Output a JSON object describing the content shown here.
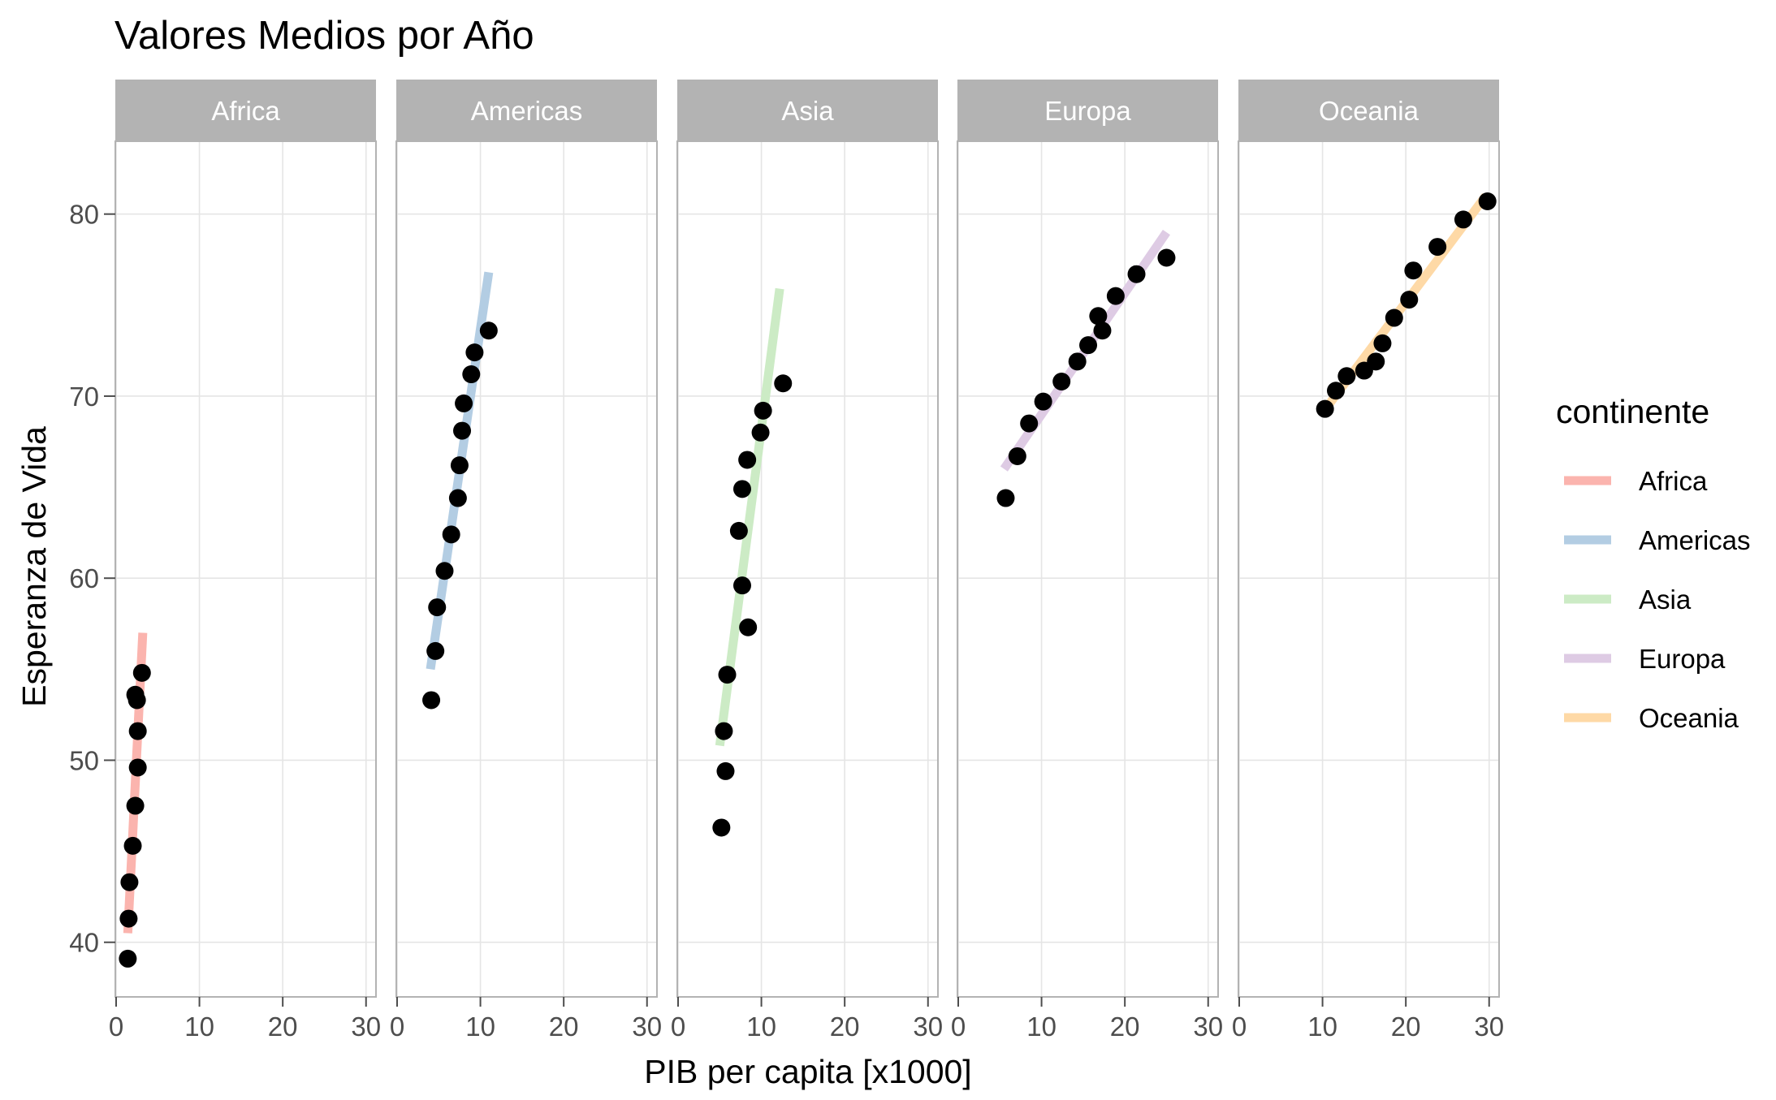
{
  "chart_data": {
    "type": "scatter",
    "title": "Valores Medios por Año",
    "xlabel": "PIB per capita [x1000]",
    "ylabel": "Esperanza de Vida",
    "xlim": [
      0,
      30
    ],
    "ylim": [
      37,
      84
    ],
    "x_ticks": [
      0,
      10,
      20,
      30
    ],
    "x_tick_labels": [
      "0",
      "10",
      "20",
      "30"
    ],
    "y_ticks": [
      40,
      50,
      60,
      70,
      80
    ],
    "y_tick_labels": [
      "40",
      "50",
      "60",
      "70",
      "80"
    ],
    "grid": true,
    "legend_title": "continente",
    "legend_position": "right",
    "legend_entries": [
      "Africa",
      "Americas",
      "Asia",
      "Europa",
      "Oceania"
    ],
    "point_color": "#000000",
    "strip_color": "#b3b3b3",
    "panels": [
      {
        "name": "Africa",
        "color": "#fbb4ae",
        "points": [
          [
            1.4,
            39.1
          ],
          [
            1.5,
            41.3
          ],
          [
            1.6,
            43.3
          ],
          [
            2.0,
            45.3
          ],
          [
            2.3,
            47.5
          ],
          [
            2.6,
            49.6
          ],
          [
            2.6,
            51.6
          ],
          [
            2.5,
            53.3
          ],
          [
            2.3,
            53.6
          ],
          [
            3.1,
            54.8
          ]
        ],
        "trend": [
          [
            1.4,
            40.5
          ],
          [
            3.2,
            57.0
          ]
        ]
      },
      {
        "name": "Americas",
        "color": "#b3cde3",
        "points": [
          [
            4.1,
            53.3
          ],
          [
            4.6,
            56.0
          ],
          [
            4.8,
            58.4
          ],
          [
            5.7,
            60.4
          ],
          [
            6.5,
            62.4
          ],
          [
            7.3,
            64.4
          ],
          [
            7.5,
            66.2
          ],
          [
            7.8,
            68.1
          ],
          [
            8.0,
            69.6
          ],
          [
            8.9,
            71.2
          ],
          [
            9.3,
            72.4
          ],
          [
            11.0,
            73.6
          ]
        ],
        "trend": [
          [
            4.0,
            55.0
          ],
          [
            11.0,
            76.8
          ]
        ]
      },
      {
        "name": "Asia",
        "color": "#ccebc5",
        "points": [
          [
            5.2,
            46.3
          ],
          [
            5.7,
            49.4
          ],
          [
            5.5,
            51.6
          ],
          [
            5.9,
            54.7
          ],
          [
            8.4,
            57.3
          ],
          [
            7.7,
            59.6
          ],
          [
            7.3,
            62.6
          ],
          [
            7.7,
            64.9
          ],
          [
            8.3,
            66.5
          ],
          [
            9.9,
            68.0
          ],
          [
            10.2,
            69.2
          ],
          [
            12.6,
            70.7
          ]
        ],
        "trend": [
          [
            5.0,
            50.8
          ],
          [
            12.2,
            75.9
          ]
        ]
      },
      {
        "name": "Europa",
        "color": "#decbe4",
        "points": [
          [
            5.7,
            64.4
          ],
          [
            7.1,
            66.7
          ],
          [
            8.5,
            68.5
          ],
          [
            10.2,
            69.7
          ],
          [
            12.4,
            70.8
          ],
          [
            14.3,
            71.9
          ],
          [
            15.6,
            72.8
          ],
          [
            17.3,
            73.6
          ],
          [
            16.8,
            74.4
          ],
          [
            18.9,
            75.5
          ],
          [
            21.4,
            76.7
          ],
          [
            25.0,
            77.6
          ]
        ],
        "trend": [
          [
            5.5,
            66.0
          ],
          [
            25.0,
            79.0
          ]
        ]
      },
      {
        "name": "Oceania",
        "color": "#fed9a6",
        "points": [
          [
            10.3,
            69.3
          ],
          [
            11.6,
            70.3
          ],
          [
            12.9,
            71.1
          ],
          [
            15.0,
            71.4
          ],
          [
            16.4,
            71.9
          ],
          [
            17.2,
            72.9
          ],
          [
            18.6,
            74.3
          ],
          [
            20.4,
            75.3
          ],
          [
            20.9,
            76.9
          ],
          [
            23.8,
            78.2
          ],
          [
            26.9,
            79.7
          ],
          [
            29.8,
            80.7
          ]
        ],
        "trend": [
          [
            10.2,
            69.2
          ],
          [
            29.6,
            81.0
          ]
        ]
      }
    ]
  }
}
